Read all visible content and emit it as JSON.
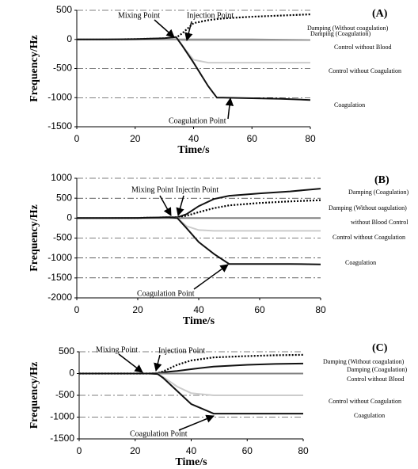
{
  "chart_data": [
    {
      "type": "line",
      "panel_label": "(A)",
      "xlabel": "Time/s",
      "ylabel": "Frequency/Hz",
      "xlim": [
        0,
        80
      ],
      "ylim": [
        -1500,
        500
      ],
      "xticks": [
        0,
        20,
        40,
        60,
        80
      ],
      "yticks": [
        -1500,
        -1000,
        -500,
        0,
        500
      ],
      "grid": true,
      "x": [
        0,
        10,
        20,
        30,
        34,
        36,
        40,
        45,
        48,
        50,
        60,
        70,
        80
      ],
      "series": [
        {
          "name": "Damping (Without coagulation)",
          "color": "#000000",
          "dash": "dotted",
          "values": [
            0,
            0,
            5,
            20,
            30,
            100,
            280,
            330,
            350,
            360,
            390,
            410,
            430
          ]
        },
        {
          "name": "Damping (Coagulation)",
          "color": "#808080",
          "dash": "solid",
          "values": [
            0,
            0,
            0,
            0,
            0,
            0,
            0,
            0,
            0,
            0,
            0,
            -5,
            -10
          ]
        },
        {
          "name": "Control without Blood",
          "color": "#9a9a9a",
          "dash": "solid",
          "values": [
            0,
            0,
            0,
            0,
            0,
            -10,
            -10,
            -10,
            -10,
            -10,
            -10,
            -10,
            -10
          ]
        },
        {
          "name": "Control without Coagulation",
          "color": "#cccccc",
          "dash": "solid",
          "values": [
            0,
            0,
            5,
            20,
            30,
            -100,
            -350,
            -400,
            -400,
            -400,
            -400,
            -400,
            -400
          ]
        },
        {
          "name": "Coagulation",
          "color": "#111111",
          "dash": "solid",
          "values": [
            0,
            0,
            5,
            20,
            40,
            -100,
            -400,
            -800,
            -1000,
            -1000,
            -1010,
            -1020,
            -1040
          ]
        }
      ],
      "annotations": [
        "Mixing Point",
        "Injection Point",
        "Coagulation Point"
      ]
    },
    {
      "type": "line",
      "panel_label": "(B)",
      "xlabel": "Time/s",
      "ylabel": "Frequency/Hz",
      "xlim": [
        0,
        80
      ],
      "ylim": [
        -2000,
        1000
      ],
      "xticks": [
        0,
        20,
        40,
        60,
        80
      ],
      "yticks": [
        -2000,
        -1500,
        -1000,
        -500,
        0,
        500,
        1000
      ],
      "grid": true,
      "x": [
        0,
        10,
        20,
        30,
        33,
        36,
        40,
        45,
        50,
        60,
        70,
        80
      ],
      "series": [
        {
          "name": "Damping (Coagulation)",
          "color": "#111111",
          "dash": "solid",
          "values": [
            0,
            0,
            5,
            20,
            20,
            100,
            300,
            480,
            560,
            620,
            670,
            740
          ]
        },
        {
          "name": "Damping (Without oagulation)",
          "color": "#000000",
          "dash": "dotted",
          "values": [
            0,
            0,
            5,
            20,
            20,
            60,
            150,
            250,
            320,
            380,
            420,
            450
          ]
        },
        {
          "name": "without Blood Control",
          "color": "#808080",
          "dash": "solid",
          "values": [
            0,
            0,
            0,
            0,
            0,
            0,
            0,
            0,
            0,
            0,
            0,
            0
          ]
        },
        {
          "name": "Control without Coagulation",
          "color": "#cccccc",
          "dash": "solid",
          "values": [
            0,
            0,
            5,
            20,
            0,
            -200,
            -300,
            -320,
            -320,
            -320,
            -320,
            -320
          ]
        },
        {
          "name": "Coagulation",
          "color": "#111111",
          "dash": "solid",
          "values": [
            0,
            0,
            5,
            20,
            0,
            -250,
            -600,
            -900,
            -1150,
            -1150,
            -1150,
            -1160
          ]
        }
      ],
      "annotations": [
        "Mixing Point",
        "Injectin Point",
        "Coagulation Point"
      ]
    },
    {
      "type": "line",
      "panel_label": "(C)",
      "xlabel": "Time/s",
      "ylabel": "Frequency/Hz",
      "xlim": [
        0,
        80
      ],
      "ylim": [
        -1500,
        500
      ],
      "xticks": [
        0,
        20,
        40,
        60,
        80
      ],
      "yticks": [
        -1500,
        -1000,
        -500,
        0,
        500
      ],
      "grid": true,
      "x": [
        0,
        10,
        20,
        25,
        28,
        30,
        35,
        40,
        48,
        60,
        70,
        80
      ],
      "series": [
        {
          "name": "Damping (Without coagulation)",
          "color": "#000000",
          "dash": "dotted",
          "values": [
            0,
            0,
            0,
            0,
            10,
            50,
            200,
            300,
            370,
            400,
            420,
            430
          ]
        },
        {
          "name": "Damping (Coagulation)",
          "color": "#111111",
          "dash": "solid",
          "values": [
            0,
            0,
            0,
            0,
            10,
            30,
            60,
            100,
            160,
            200,
            220,
            230
          ]
        },
        {
          "name": "Control without Blood",
          "color": "#808080",
          "dash": "solid",
          "values": [
            0,
            0,
            0,
            0,
            0,
            0,
            0,
            0,
            0,
            0,
            0,
            0
          ]
        },
        {
          "name": "Control without Coagulation",
          "color": "#cccccc",
          "dash": "solid",
          "values": [
            0,
            0,
            0,
            0,
            -10,
            -80,
            -300,
            -450,
            -500,
            -500,
            -500,
            -500
          ]
        },
        {
          "name": "Coagulation",
          "color": "#111111",
          "dash": "solid",
          "values": [
            0,
            0,
            0,
            0,
            -10,
            -100,
            -400,
            -700,
            -920,
            -920,
            -920,
            -920
          ]
        }
      ],
      "annotations": [
        "Mixing Point",
        "Injection Point",
        "Coagulation Point"
      ]
    }
  ]
}
